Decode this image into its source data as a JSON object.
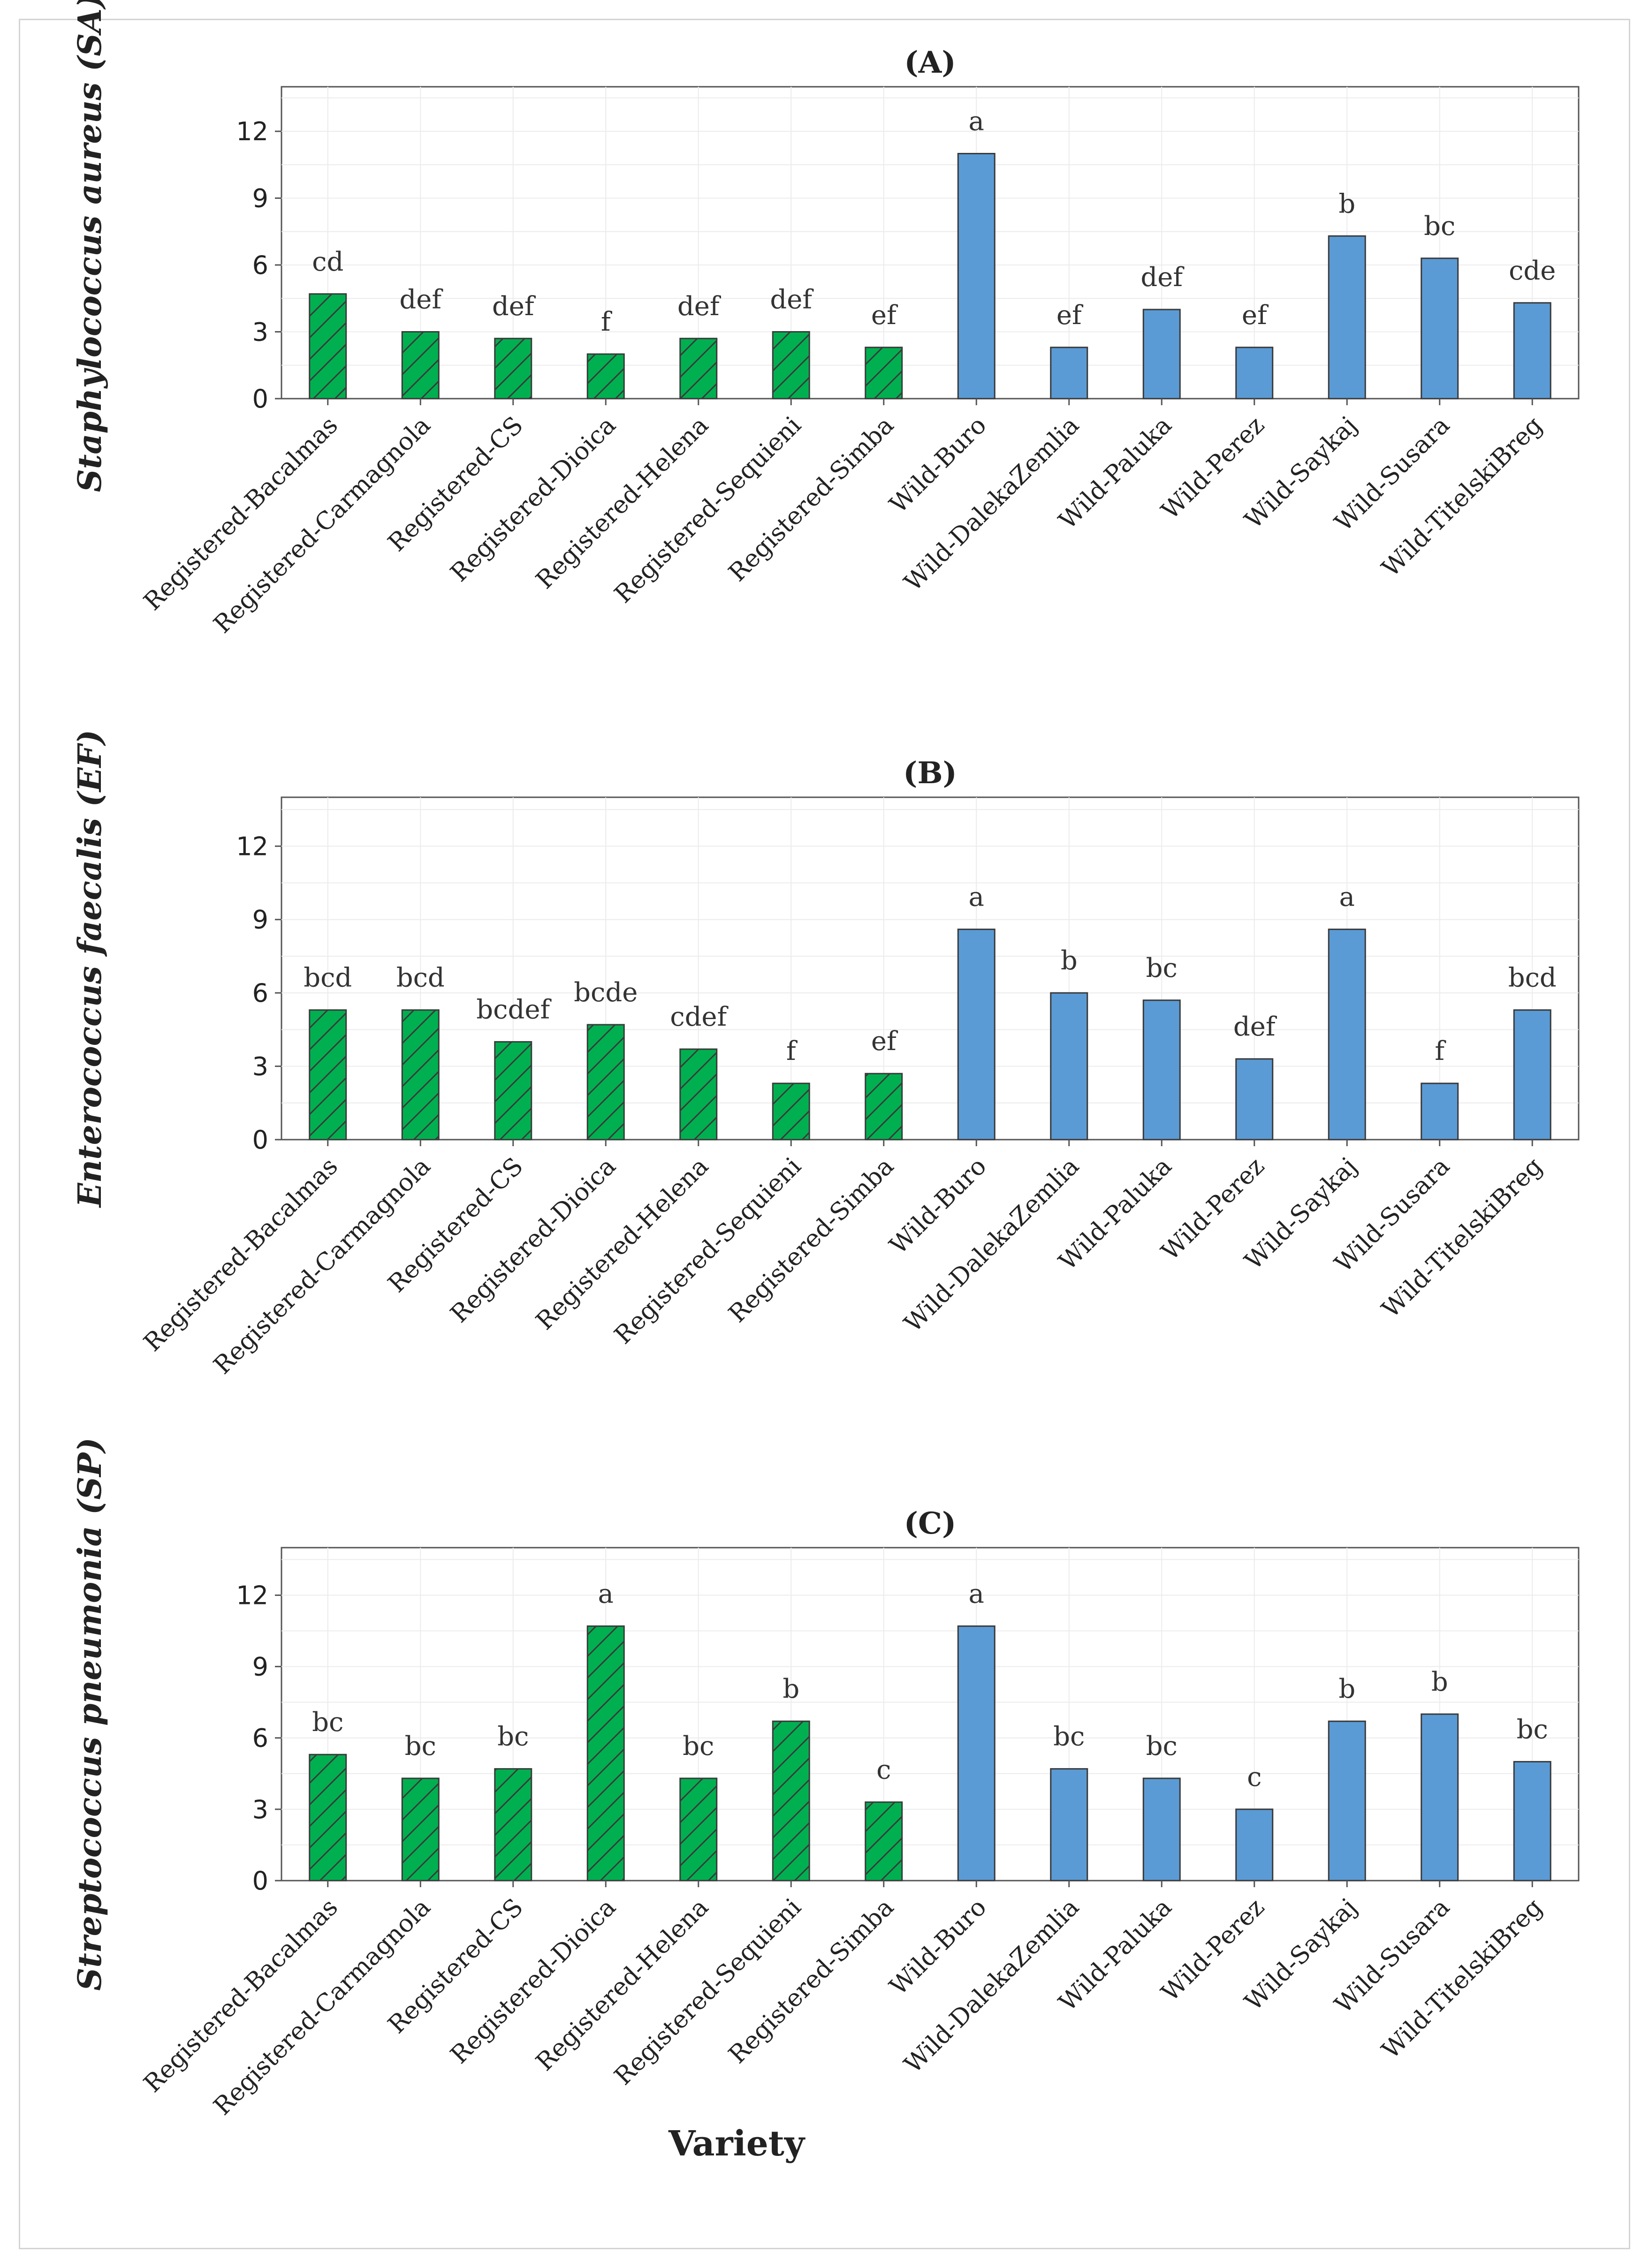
{
  "colors": {
    "registered": "#00b050",
    "wild": "#5b9bd5",
    "bar_stroke": "#3a3a3a",
    "hatch": "#3a3a3a",
    "grid": "#ececec",
    "axis": "#555555"
  },
  "xlabel": "Variety",
  "chart_data": [
    {
      "type": "bar",
      "title": "(A)",
      "ylabel": "Staphylococcus aureus (SA)",
      "xlabel": "",
      "ylim": [
        0,
        14
      ],
      "yticks": [
        0,
        3,
        6,
        9,
        12
      ],
      "grid": true,
      "categories": [
        "Registered-Bacalmas",
        "Registered-Carmagnola",
        "Registered-CS",
        "Registered-Dioica",
        "Registered-Helena",
        "Registered-Sequieni",
        "Registered-Simba",
        "Wild-Buro",
        "Wild-DalekaZemlia",
        "Wild-Paluka",
        "Wild-Perez",
        "Wild-Saykaj",
        "Wild-Susara",
        "Wild-TitelskiBreg"
      ],
      "values": [
        4.7,
        3.0,
        2.7,
        2.0,
        2.7,
        3.0,
        2.3,
        11.0,
        2.3,
        4.0,
        2.3,
        7.3,
        6.3,
        4.3
      ],
      "letters": [
        "cd",
        "def",
        "def",
        "f",
        "def",
        "def",
        "ef",
        "a",
        "ef",
        "def",
        "ef",
        "b",
        "bc",
        "cde"
      ],
      "groups": [
        "registered",
        "registered",
        "registered",
        "registered",
        "registered",
        "registered",
        "registered",
        "wild",
        "wild",
        "wild",
        "wild",
        "wild",
        "wild",
        "wild"
      ]
    },
    {
      "type": "bar",
      "title": "(B)",
      "ylabel": "Enterococcus faecalis (EF)",
      "xlabel": "",
      "ylim": [
        0,
        14
      ],
      "yticks": [
        0,
        3,
        6,
        9,
        12
      ],
      "grid": true,
      "categories": [
        "Registered-Bacalmas",
        "Registered-Carmagnola",
        "Registered-CS",
        "Registered-Dioica",
        "Registered-Helena",
        "Registered-Sequieni",
        "Registered-Simba",
        "Wild-Buro",
        "Wild-DalekaZemlia",
        "Wild-Paluka",
        "Wild-Perez",
        "Wild-Saykaj",
        "Wild-Susara",
        "Wild-TitelskiBreg"
      ],
      "values": [
        5.3,
        5.3,
        4.0,
        4.7,
        3.7,
        2.3,
        2.7,
        8.6,
        6.0,
        5.7,
        3.3,
        8.6,
        2.3,
        5.3
      ],
      "letters": [
        "bcd",
        "bcd",
        "bcdef",
        "bcde",
        "cdef",
        "f",
        "ef",
        "a",
        "b",
        "bc",
        "def",
        "a",
        "f",
        "bcd"
      ],
      "groups": [
        "registered",
        "registered",
        "registered",
        "registered",
        "registered",
        "registered",
        "registered",
        "wild",
        "wild",
        "wild",
        "wild",
        "wild",
        "wild",
        "wild"
      ]
    },
    {
      "type": "bar",
      "title": "(C)",
      "ylabel": "Streptococcus pneumonia (SP)",
      "xlabel": "Variety",
      "ylim": [
        0,
        14
      ],
      "yticks": [
        0,
        3,
        6,
        9,
        12
      ],
      "grid": true,
      "categories": [
        "Registered-Bacalmas",
        "Registered-Carmagnola",
        "Registered-CS",
        "Registered-Dioica",
        "Registered-Helena",
        "Registered-Sequieni",
        "Registered-Simba",
        "Wild-Buro",
        "Wild-DalekaZemlia",
        "Wild-Paluka",
        "Wild-Perez",
        "Wild-Saykaj",
        "Wild-Susara",
        "Wild-TitelskiBreg"
      ],
      "values": [
        5.3,
        4.3,
        4.7,
        10.7,
        4.3,
        6.7,
        3.3,
        10.7,
        4.7,
        4.3,
        3.0,
        6.7,
        7.0,
        5.0
      ],
      "letters": [
        "bc",
        "bc",
        "bc",
        "a",
        "bc",
        "b",
        "c",
        "a",
        "bc",
        "bc",
        "c",
        "b",
        "b",
        "bc"
      ],
      "groups": [
        "registered",
        "registered",
        "registered",
        "registered",
        "registered",
        "registered",
        "registered",
        "wild",
        "wild",
        "wild",
        "wild",
        "wild",
        "wild",
        "wild"
      ]
    }
  ]
}
